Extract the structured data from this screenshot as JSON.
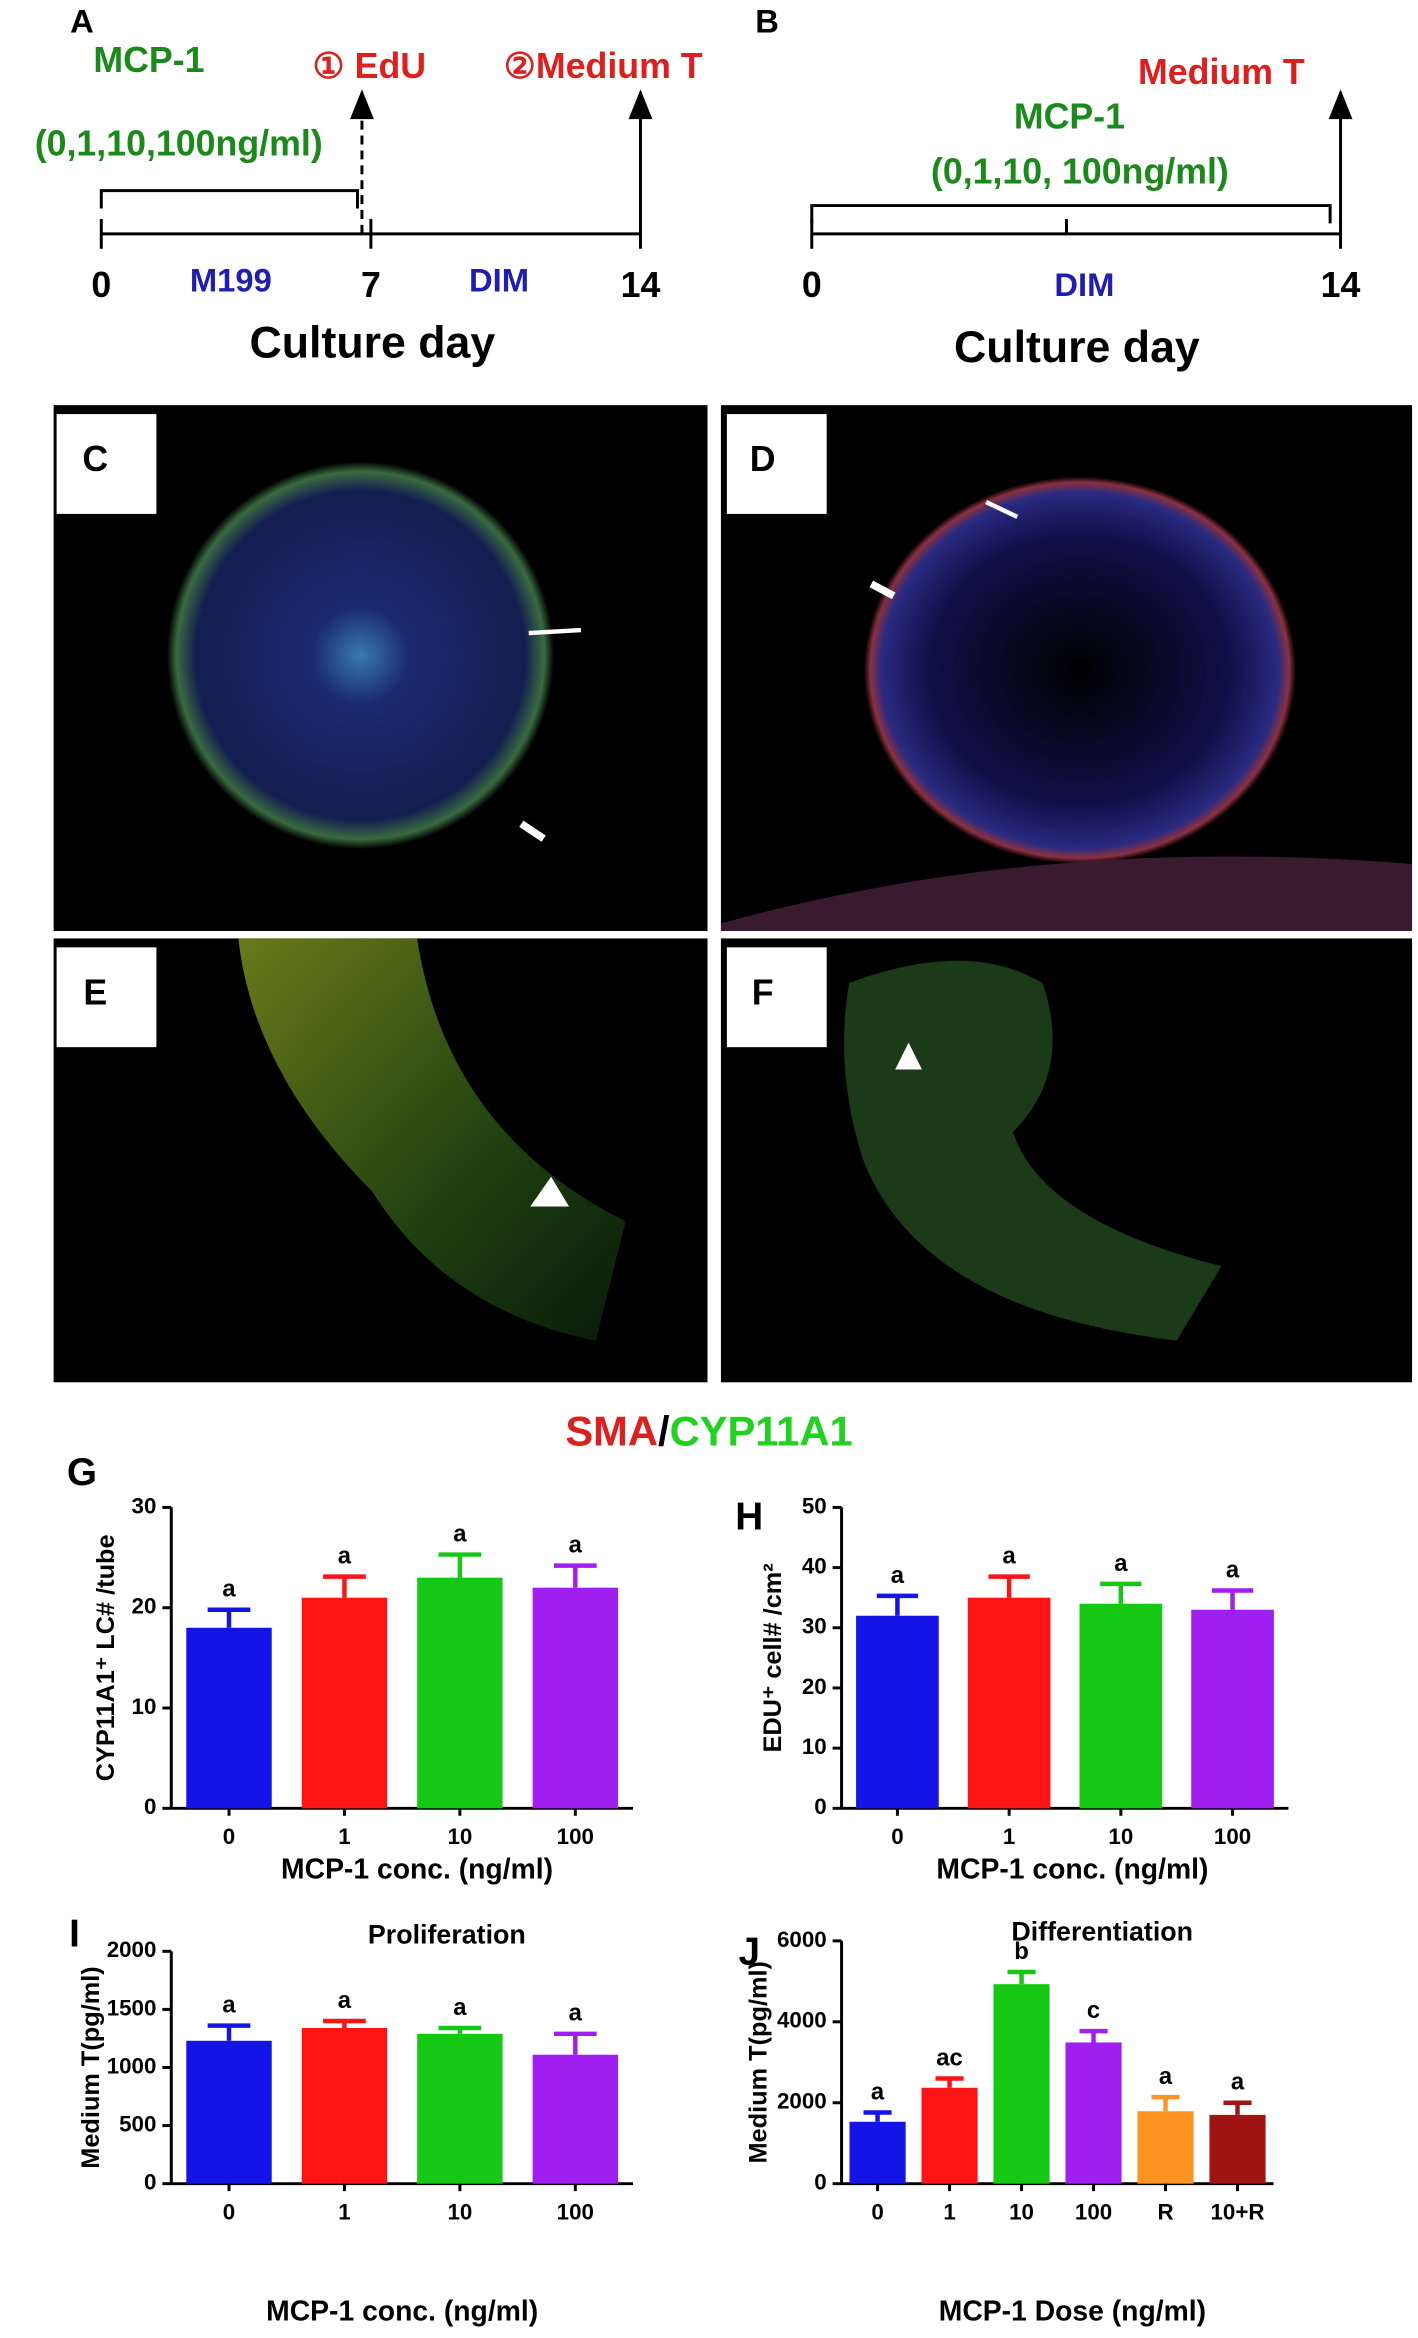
{
  "timeline_a": {
    "panel": "A",
    "treatment": "MCP-1",
    "doses": "(0,1,10,100ng/ml)",
    "step1": "① EdU",
    "step2": "②Medium  T",
    "days": [
      0,
      7,
      14
    ],
    "medium1": "M199",
    "medium2": "DIM",
    "axis_label": "Culture day"
  },
  "timeline_b": {
    "panel": "B",
    "endpoint": "Medium  T",
    "treatment": "MCP-1",
    "doses": "(0,1,10, 100ng/ml)",
    "days": [
      0,
      14
    ],
    "medium": "DIM",
    "axis_label": "Culture day"
  },
  "micrographs": {
    "labels": [
      "C",
      "D",
      "E",
      "F"
    ]
  },
  "stain_label": {
    "parts": [
      "SMA",
      "/",
      "CYP11A1"
    ]
  },
  "chart_data": [
    {
      "type": "bar",
      "panel": "G",
      "y_label": "CYP11A1⁺ LC# /tube",
      "x_label": "MCP-1 conc.  (ng/ml)",
      "categories": [
        "0",
        "1",
        "10",
        "100"
      ],
      "values": [
        18,
        21,
        23,
        22
      ],
      "errors": [
        1.8,
        2.1,
        2.3,
        2.2
      ],
      "letters": [
        "a",
        "a",
        "a",
        "a"
      ],
      "colors": [
        "#1414e6",
        "#ff1414",
        "#14c814",
        "#a01ef0"
      ],
      "ylim": [
        0,
        30
      ],
      "yticks": [
        0,
        10,
        20,
        30
      ]
    },
    {
      "type": "bar",
      "panel": "H",
      "y_label": "EDU⁺ cell# /cm²",
      "x_label": "MCP-1 conc.  (ng/ml)",
      "categories": [
        "0",
        "1",
        "10",
        "100"
      ],
      "values": [
        32,
        35,
        34,
        33
      ],
      "errors": [
        3.3,
        3.5,
        3.3,
        3.2
      ],
      "letters": [
        "a",
        "a",
        "a",
        "a"
      ],
      "colors": [
        "#1414e6",
        "#ff1414",
        "#14c814",
        "#a01ef0"
      ],
      "ylim": [
        0,
        50
      ],
      "yticks": [
        0,
        10,
        20,
        30,
        40,
        50
      ]
    },
    {
      "type": "bar",
      "panel": "I",
      "title": "Proliferation",
      "y_label": "Medium T(pg/ml)",
      "x_label": "MCP-1 conc.  (ng/ml)",
      "categories": [
        "0",
        "1",
        "10",
        "100"
      ],
      "values": [
        1230,
        1340,
        1290,
        1110
      ],
      "errors": [
        130,
        60,
        50,
        180
      ],
      "letters": [
        "a",
        "a",
        "a",
        "a"
      ],
      "colors": [
        "#1414e6",
        "#ff1414",
        "#14c814",
        "#a01ef0"
      ],
      "ylim": [
        0,
        2000
      ],
      "yticks": [
        0,
        500,
        1000,
        1500,
        2000
      ]
    },
    {
      "type": "bar",
      "panel": "J",
      "title": "Differentiation",
      "y_label": "Medium T(pg/ml)",
      "x_label": "MCP-1 Dose (ng/ml)",
      "categories": [
        "0",
        "1",
        "10",
        "100",
        "R",
        "10+R"
      ],
      "values": [
        1530,
        2370,
        4930,
        3490,
        1790,
        1700
      ],
      "errors": [
        230,
        230,
        300,
        280,
        350,
        300
      ],
      "letters": [
        "a",
        "ac",
        "b",
        "c",
        "a",
        "a"
      ],
      "colors": [
        "#1414e6",
        "#ff1414",
        "#14c814",
        "#a01ef0",
        "#ff9420",
        "#a01414"
      ],
      "ylim": [
        0,
        6000
      ],
      "yticks": [
        0,
        2000,
        4000,
        6000
      ]
    }
  ]
}
